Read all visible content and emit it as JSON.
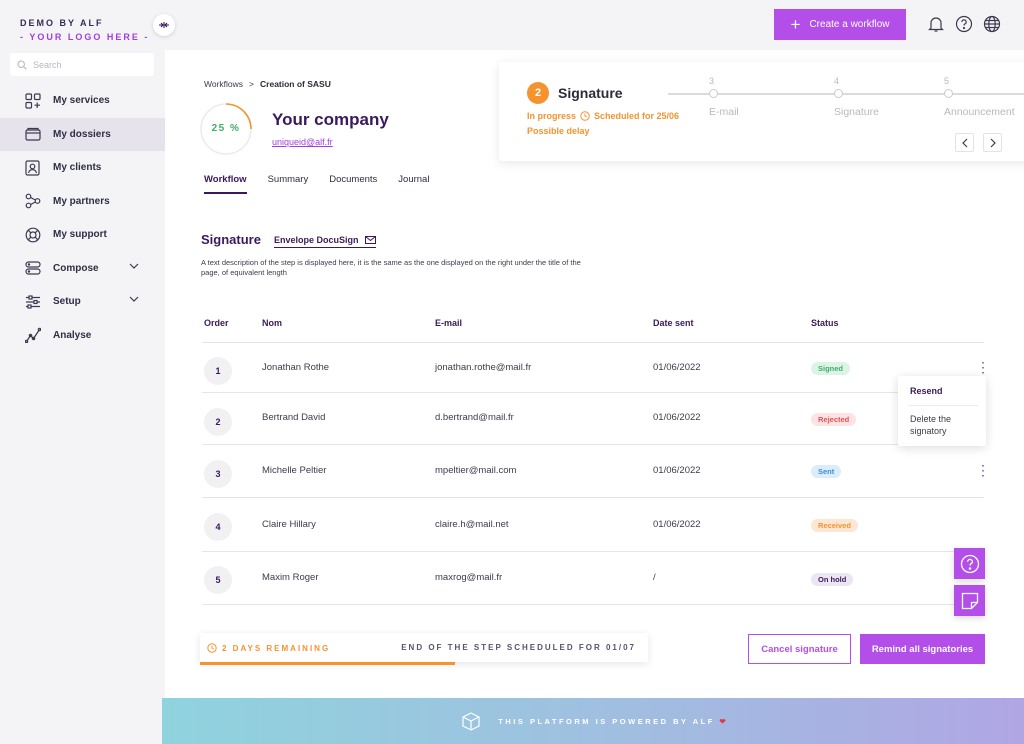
{
  "brand": {
    "name": "DEMO BY ALF",
    "logo_text": "- YOUR LOGO HERE -"
  },
  "search": {
    "placeholder": "Search"
  },
  "sidebar": {
    "items": [
      {
        "label": "My services",
        "icon": "services-icon"
      },
      {
        "label": "My dossiers",
        "icon": "folder-icon",
        "active": true
      },
      {
        "label": "My clients",
        "icon": "clients-icon"
      },
      {
        "label": "My partners",
        "icon": "partners-icon"
      },
      {
        "label": "My support",
        "icon": "support-icon"
      },
      {
        "label": "Compose",
        "icon": "compose-icon",
        "expandable": true
      },
      {
        "label": "Setup",
        "icon": "setup-icon",
        "expandable": true
      },
      {
        "label": "Analyse",
        "icon": "analyse-icon"
      }
    ]
  },
  "topbar": {
    "create_label": "Create a workflow"
  },
  "breadcrumb": {
    "root": "Workflows",
    "separator": ">",
    "current": "Creation of SASU"
  },
  "company": {
    "progress": "25 %",
    "progress_value": 0.25,
    "name": "Your company",
    "link": "uniqueid@alf.fr"
  },
  "tabs": [
    {
      "label": "Workflow",
      "active": true
    },
    {
      "label": "Summary"
    },
    {
      "label": "Documents"
    },
    {
      "label": "Journal"
    }
  ],
  "step_card": {
    "number": "2",
    "title": "Signature",
    "status": "In progress",
    "scheduled": "Scheduled for 25/06",
    "delay": "Possible delay",
    "next_steps": [
      {
        "number": "3",
        "label": "E-mail"
      },
      {
        "number": "4",
        "label": "Signature"
      },
      {
        "number": "5",
        "label": "Announcement"
      }
    ]
  },
  "section": {
    "title": "Signature",
    "envelope": "Envelope DocuSign",
    "description": "A text description of the step is displayed here, it is the same as the one displayed on the right under the title of the page, of equivalent length"
  },
  "table": {
    "headers": [
      "Order",
      "Nom",
      "E-mail",
      "Date sent",
      "Status"
    ],
    "rows": [
      {
        "order": "1",
        "name": "Jonathan Rothe",
        "email": "jonathan.rothe@mail.fr",
        "date": "01/06/2022",
        "status": "Signed"
      },
      {
        "order": "2",
        "name": "Bertrand David",
        "email": "d.bertrand@mail.fr",
        "date": "01/06/2022",
        "status": "Rejected"
      },
      {
        "order": "3",
        "name": "Michelle Peltier",
        "email": "mpeltier@mail.com",
        "date": "01/06/2022",
        "status": "Sent"
      },
      {
        "order": "4",
        "name": "Claire Hillary",
        "email": "claire.h@mail.net",
        "date": "01/06/2022",
        "status": "Received"
      },
      {
        "order": "5",
        "name": "Maxim Roger",
        "email": "maxrog@mail.fr",
        "date": "/",
        "status": "On hold"
      }
    ]
  },
  "context_menu": {
    "resend": "Resend",
    "delete": "Delete the signatory"
  },
  "remaining": {
    "label": "2 DAYS REMAINING",
    "end": "END OF THE STEP SCHEDULED FOR 01/07",
    "progress": 0.57
  },
  "actions": {
    "cancel": "Cancel signature",
    "remind": "Remind all signatories"
  },
  "footer": {
    "text": "THIS PLATFORM IS POWERED BY ALF",
    "heart": "❤"
  },
  "colors": {
    "accent": "#b34ee9",
    "dark_purple": "#3a1a5c",
    "orange": "#f5932e",
    "green": "#3fae6c"
  }
}
